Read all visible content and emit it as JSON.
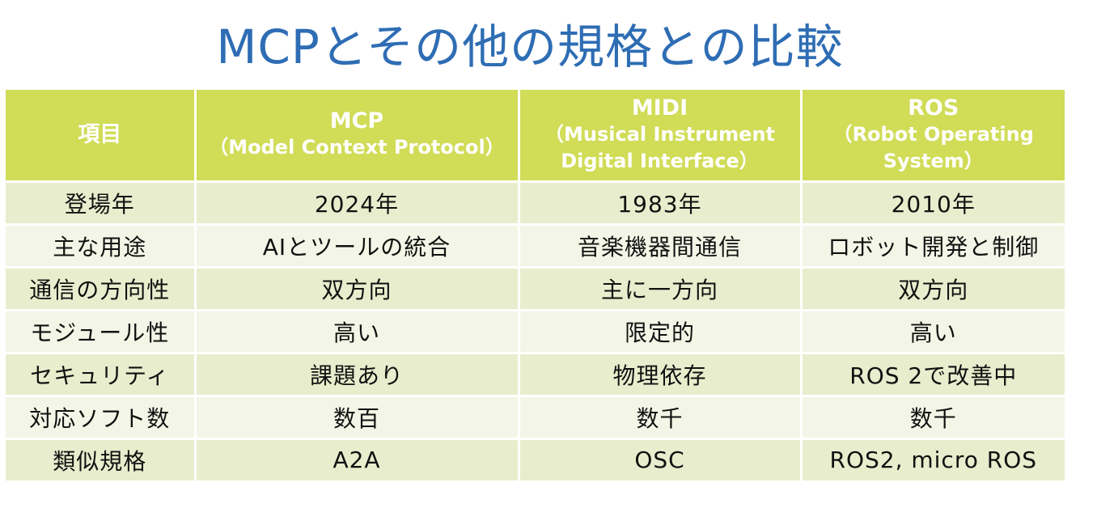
{
  "slide": {
    "title": "MCPとその他の規格との比較"
  },
  "table": {
    "headers": [
      {
        "main": "項目",
        "sub": ""
      },
      {
        "main": "MCP",
        "sub": "（Model Context Protocol）"
      },
      {
        "main": "MIDI",
        "sub": "（Musical Instrument\nDigital Interface）"
      },
      {
        "main": "ROS",
        "sub": "（Robot Operating\nSystem）"
      }
    ],
    "rows": [
      [
        "登場年",
        "2024年",
        "1983年",
        "2010年"
      ],
      [
        "主な用途",
        "AIとツールの統合",
        "音楽機器間通信",
        "ロボット開発と制御"
      ],
      [
        "通信の方向性",
        "双方向",
        "主に一方向",
        "双方向"
      ],
      [
        "モジュール性",
        "高い",
        "限定的",
        "高い"
      ],
      [
        "セキュリティ",
        "課題あり",
        "物理依存",
        "ROS 2で改善中"
      ],
      [
        "対応ソフト数",
        "数百",
        "数千",
        "数千"
      ],
      [
        "類似規格",
        "A2A",
        "OSC",
        "ROS2, micro ROS"
      ]
    ]
  },
  "colors": {
    "title": "#2e6db4",
    "header_bg": "#d1dc57",
    "row_bg_odd": "#e8edcd",
    "row_bg_even": "#f3f6e6"
  }
}
